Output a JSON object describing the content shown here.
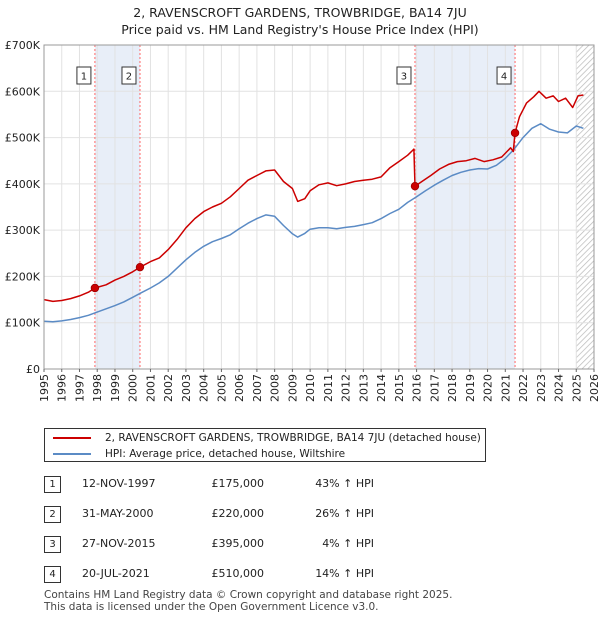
{
  "title_line1": "2, RAVENSCROFT GARDENS, TROWBRIDGE, BA14 7JU",
  "title_line2": "Price paid vs. HM Land Registry's House Price Index (HPI)",
  "colors": {
    "property": "#cc0000",
    "hpi": "#5b8bc5",
    "shade": "#e8eef8",
    "marker_line": "#ff6666"
  },
  "chart_data": {
    "type": "line",
    "title": "2, RAVENSCROFT GARDENS, TROWBRIDGE, BA14 7JU — Price paid vs. HM Land Registry's House Price Index (HPI)",
    "xlim": [
      1995,
      2026
    ],
    "ylim": [
      0,
      700000
    ],
    "x_ticks": [
      1995,
      1996,
      1997,
      1998,
      1999,
      2000,
      2001,
      2002,
      2003,
      2004,
      2005,
      2006,
      2007,
      2008,
      2009,
      2010,
      2011,
      2012,
      2013,
      2014,
      2015,
      2016,
      2017,
      2018,
      2019,
      2020,
      2021,
      2022,
      2023,
      2024,
      2025,
      2026
    ],
    "y_ticks": [
      {
        "value": 0,
        "label": "£0"
      },
      {
        "value": 100000,
        "label": "£100K"
      },
      {
        "value": 200000,
        "label": "£200K"
      },
      {
        "value": 300000,
        "label": "£300K"
      },
      {
        "value": 400000,
        "label": "£400K"
      },
      {
        "value": 500000,
        "label": "£500K"
      },
      {
        "value": 600000,
        "label": "£600K"
      },
      {
        "value": 700000,
        "label": "£700K"
      }
    ],
    "shaded_ranges": [
      [
        1997.87,
        2000.41
      ],
      [
        2015.91,
        2021.55
      ]
    ],
    "hatched_from": 2025.0,
    "series": [
      {
        "name": "2, RAVENSCROFT GARDENS, TROWBRIDGE, BA14 7JU (detached house)",
        "x": [
          1995.0,
          1995.5,
          1996.0,
          1996.5,
          1997.0,
          1997.5,
          1997.87,
          1998.5,
          1999.0,
          1999.5,
          2000.0,
          2000.41,
          2001.0,
          2001.5,
          2002.0,
          2002.5,
          2003.0,
          2003.5,
          2004.0,
          2004.5,
          2005.0,
          2005.5,
          2006.0,
          2006.5,
          2007.0,
          2007.5,
          2008.0,
          2008.5,
          2009.0,
          2009.3,
          2009.7,
          2010.0,
          2010.5,
          2011.0,
          2011.5,
          2012.0,
          2012.5,
          2013.0,
          2013.5,
          2014.0,
          2014.5,
          2015.0,
          2015.5,
          2015.85,
          2015.91,
          2016.3,
          2016.8,
          2017.3,
          2017.8,
          2018.3,
          2018.8,
          2019.3,
          2019.8,
          2020.3,
          2020.8,
          2021.3,
          2021.45,
          2021.55,
          2021.8,
          2022.2,
          2022.6,
          2022.9,
          2023.3,
          2023.7,
          2024.0,
          2024.4,
          2024.8,
          2025.1,
          2025.4
        ],
        "values": [
          150000,
          146000,
          148000,
          152000,
          158000,
          166000,
          175000,
          182000,
          192000,
          200000,
          210000,
          220000,
          232000,
          240000,
          258000,
          280000,
          305000,
          325000,
          340000,
          350000,
          358000,
          372000,
          390000,
          408000,
          418000,
          428000,
          430000,
          405000,
          390000,
          362000,
          368000,
          385000,
          398000,
          402000,
          396000,
          400000,
          405000,
          408000,
          410000,
          415000,
          435000,
          448000,
          462000,
          475000,
          395000,
          405000,
          418000,
          432000,
          442000,
          448000,
          450000,
          455000,
          448000,
          452000,
          458000,
          478000,
          470000,
          510000,
          545000,
          575000,
          588000,
          600000,
          585000,
          590000,
          578000,
          585000,
          565000,
          590000,
          592000
        ]
      },
      {
        "name": "HPI: Average price, detached house, Wiltshire",
        "x": [
          1995.0,
          1995.5,
          1996.0,
          1996.5,
          1997.0,
          1997.5,
          1998.0,
          1998.5,
          1999.0,
          1999.5,
          2000.0,
          2000.5,
          2001.0,
          2001.5,
          2002.0,
          2002.5,
          2003.0,
          2003.5,
          2004.0,
          2004.5,
          2005.0,
          2005.5,
          2006.0,
          2006.5,
          2007.0,
          2007.5,
          2008.0,
          2008.5,
          2009.0,
          2009.3,
          2009.7,
          2010.0,
          2010.5,
          2011.0,
          2011.5,
          2012.0,
          2012.5,
          2013.0,
          2013.5,
          2014.0,
          2014.5,
          2015.0,
          2015.5,
          2016.0,
          2016.5,
          2017.0,
          2017.5,
          2018.0,
          2018.5,
          2019.0,
          2019.5,
          2020.0,
          2020.5,
          2021.0,
          2021.5,
          2022.0,
          2022.5,
          2023.0,
          2023.5,
          2024.0,
          2024.5,
          2025.0,
          2025.4
        ],
        "values": [
          103000,
          102000,
          104000,
          107000,
          111000,
          116000,
          123000,
          130000,
          137000,
          145000,
          155000,
          165000,
          175000,
          186000,
          200000,
          218000,
          236000,
          252000,
          265000,
          275000,
          282000,
          290000,
          303000,
          315000,
          325000,
          333000,
          330000,
          310000,
          292000,
          285000,
          293000,
          302000,
          305000,
          305000,
          303000,
          306000,
          308000,
          312000,
          316000,
          325000,
          336000,
          345000,
          360000,
          372000,
          385000,
          397000,
          408000,
          418000,
          425000,
          430000,
          433000,
          432000,
          440000,
          455000,
          475000,
          500000,
          520000,
          530000,
          518000,
          512000,
          510000,
          525000,
          520000
        ]
      }
    ],
    "transactions": [
      {
        "num": "1",
        "x": 1997.87,
        "value": 175000,
        "date": "12-NOV-1997",
        "price": "£175,000",
        "hpi": "43% ↑ HPI"
      },
      {
        "num": "2",
        "x": 2000.41,
        "value": 220000,
        "date": "31-MAY-2000",
        "price": "£220,000",
        "hpi": "26% ↑ HPI"
      },
      {
        "num": "3",
        "x": 2015.91,
        "value": 395000,
        "date": "27-NOV-2015",
        "price": "£395,000",
        "hpi": "4% ↑ HPI"
      },
      {
        "num": "4",
        "x": 2021.55,
        "value": 510000,
        "date": "20-JUL-2021",
        "price": "£510,000",
        "hpi": "14% ↑ HPI"
      }
    ]
  },
  "legend": {
    "property_label": "2, RAVENSCROFT GARDENS, TROWBRIDGE, BA14 7JU (detached house)",
    "hpi_label": "HPI: Average price, detached house, Wiltshire"
  },
  "footer_line1": "Contains HM Land Registry data © Crown copyright and database right 2025.",
  "footer_line2": "This data is licensed under the Open Government Licence v3.0."
}
